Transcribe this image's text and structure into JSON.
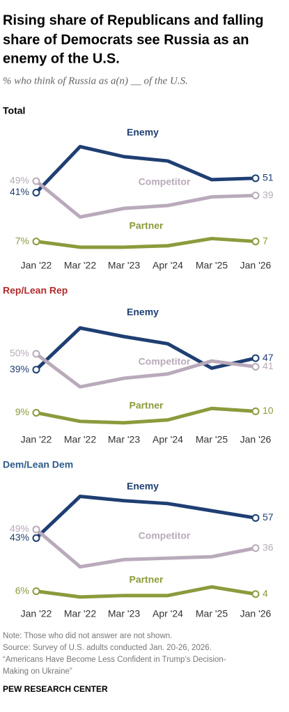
{
  "title": [
    "Rising share of Republicans and falling",
    "share of Democrats see Russia as an",
    "enemy of the U.S."
  ],
  "subtitle": "% who think of Russia as a(n) __ of the U.S.",
  "notes": [
    "Note: Those who did not answer are not shown.",
    "Source: Survey of U.S. adults conducted Jan. 20-26, 2026.",
    "“Americans Have Become Less Confident in Trump’s Decision-",
    "Making on Ukraine”"
  ],
  "credit": "PEW RESEARCH CENTER",
  "chart_data": [
    {
      "type": "line",
      "title": "Total",
      "title_color": "#000000",
      "categories": [
        "Jan '22",
        "Mar '22",
        "Mar '23",
        "Apr '24",
        "Mar '25",
        "Jan '26"
      ],
      "ylim": [
        0,
        80
      ],
      "series": [
        {
          "name": "Enemy",
          "color": "#1f3f73",
          "values": [
            41,
            73,
            66,
            63,
            50,
            51
          ],
          "value_labels": [
            "41%",
            null,
            null,
            null,
            null,
            "51"
          ]
        },
        {
          "name": "Competitor",
          "color": "#b9aabb",
          "values": [
            49,
            24,
            30,
            32,
            38,
            39
          ],
          "value_labels": [
            "49%",
            null,
            null,
            null,
            null,
            "39"
          ]
        },
        {
          "name": "Partner",
          "color": "#8c9a3c",
          "values": [
            7,
            3,
            3,
            4,
            9,
            7
          ],
          "value_labels": [
            "7%",
            null,
            null,
            null,
            null,
            "7"
          ]
        }
      ]
    },
    {
      "type": "line",
      "title": "Rep/Lean Rep",
      "title_color": "#b22c2c",
      "categories": [
        "Jan '22",
        "Mar '22",
        "Mar '23",
        "Apr '24",
        "Mar '25",
        "Jan '26"
      ],
      "ylim": [
        0,
        80
      ],
      "series": [
        {
          "name": "Enemy",
          "color": "#1f3f73",
          "values": [
            39,
            68,
            62,
            57,
            40,
            47
          ],
          "value_labels": [
            "39%",
            null,
            null,
            null,
            null,
            "47"
          ]
        },
        {
          "name": "Competitor",
          "color": "#b9aabb",
          "values": [
            50,
            27,
            33,
            36,
            45,
            41
          ],
          "value_labels": [
            "50%",
            null,
            null,
            null,
            null,
            "41"
          ]
        },
        {
          "name": "Partner",
          "color": "#8c9a3c",
          "values": [
            9,
            3,
            2,
            4,
            12,
            10
          ],
          "value_labels": [
            "9%",
            null,
            null,
            null,
            null,
            "10"
          ]
        }
      ]
    },
    {
      "type": "line",
      "title": "Dem/Lean Dem",
      "title_color": "#2f5b8a",
      "categories": [
        "Jan '22",
        "Mar '22",
        "Mar '23",
        "Apr '24",
        "Mar '25",
        "Jan '26"
      ],
      "ylim": [
        0,
        80
      ],
      "series": [
        {
          "name": "Enemy",
          "color": "#1f3f73",
          "values": [
            43,
            72,
            69,
            67,
            62,
            57
          ],
          "value_labels": [
            "43%",
            null,
            null,
            null,
            null,
            "57"
          ]
        },
        {
          "name": "Competitor",
          "color": "#b9aabb",
          "values": [
            49,
            23,
            28,
            29,
            30,
            36
          ],
          "value_labels": [
            "49%",
            null,
            null,
            null,
            null,
            "36"
          ]
        },
        {
          "name": "Partner",
          "color": "#8c9a3c",
          "values": [
            6,
            2,
            3,
            3,
            9,
            4
          ],
          "value_labels": [
            "6%",
            null,
            null,
            null,
            null,
            "4"
          ]
        }
      ]
    }
  ]
}
